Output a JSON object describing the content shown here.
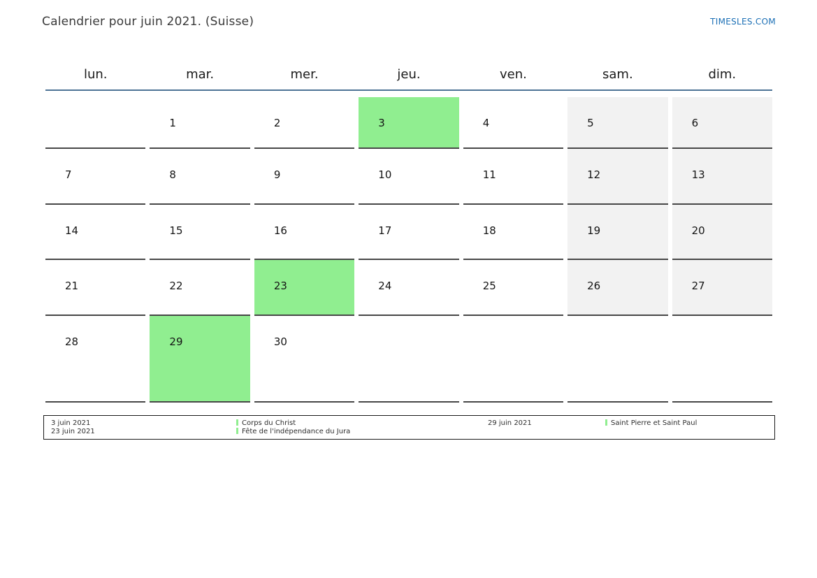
{
  "page": {
    "title": "Calendrier pour juin 2021. (Suisse)",
    "site_link": "TIMESLES.COM"
  },
  "calendar": {
    "weekday_headers": [
      "lun.",
      "mar.",
      "mer.",
      "jeu.",
      "ven.",
      "sam.",
      "dim."
    ],
    "weeks": [
      [
        {
          "day": "",
          "type": "empty"
        },
        {
          "day": "1",
          "type": "normal"
        },
        {
          "day": "2",
          "type": "normal"
        },
        {
          "day": "3",
          "type": "holiday"
        },
        {
          "day": "4",
          "type": "normal"
        },
        {
          "day": "5",
          "type": "weekend"
        },
        {
          "day": "6",
          "type": "weekend"
        }
      ],
      [
        {
          "day": "7",
          "type": "normal"
        },
        {
          "day": "8",
          "type": "normal"
        },
        {
          "day": "9",
          "type": "normal"
        },
        {
          "day": "10",
          "type": "normal"
        },
        {
          "day": "11",
          "type": "normal"
        },
        {
          "day": "12",
          "type": "weekend"
        },
        {
          "day": "13",
          "type": "weekend"
        }
      ],
      [
        {
          "day": "14",
          "type": "normal"
        },
        {
          "day": "15",
          "type": "normal"
        },
        {
          "day": "16",
          "type": "normal"
        },
        {
          "day": "17",
          "type": "normal"
        },
        {
          "day": "18",
          "type": "normal"
        },
        {
          "day": "19",
          "type": "weekend"
        },
        {
          "day": "20",
          "type": "weekend"
        }
      ],
      [
        {
          "day": "21",
          "type": "normal"
        },
        {
          "day": "22",
          "type": "normal"
        },
        {
          "day": "23",
          "type": "holiday"
        },
        {
          "day": "24",
          "type": "normal"
        },
        {
          "day": "25",
          "type": "normal"
        },
        {
          "day": "26",
          "type": "weekend"
        },
        {
          "day": "27",
          "type": "weekend"
        }
      ],
      [
        {
          "day": "28",
          "type": "normal"
        },
        {
          "day": "29",
          "type": "holiday"
        },
        {
          "day": "30",
          "type": "normal"
        },
        {
          "day": "",
          "type": "empty"
        },
        {
          "day": "",
          "type": "empty"
        },
        {
          "day": "",
          "type": "empty"
        },
        {
          "day": "",
          "type": "empty"
        }
      ]
    ]
  },
  "legend": {
    "groups": [
      {
        "entries": [
          {
            "date": "3 juin 2021",
            "name": "Corps du Christ"
          },
          {
            "date": "23 juin 2021",
            "name": "Fête de l'indépendance du Jura"
          }
        ]
      },
      {
        "entries": [
          {
            "date": "29 juin 2021",
            "name": "Saint Pierre et Saint Paul"
          }
        ]
      }
    ]
  },
  "colors": {
    "holiday_green": "#90ee90",
    "weekend_gray": "#f2f2f2",
    "header_line_blue": "#4e7496",
    "link_blue": "#1b6fb5",
    "cell_border_gray": "#474747",
    "legend_border": "#1a1a1a"
  }
}
